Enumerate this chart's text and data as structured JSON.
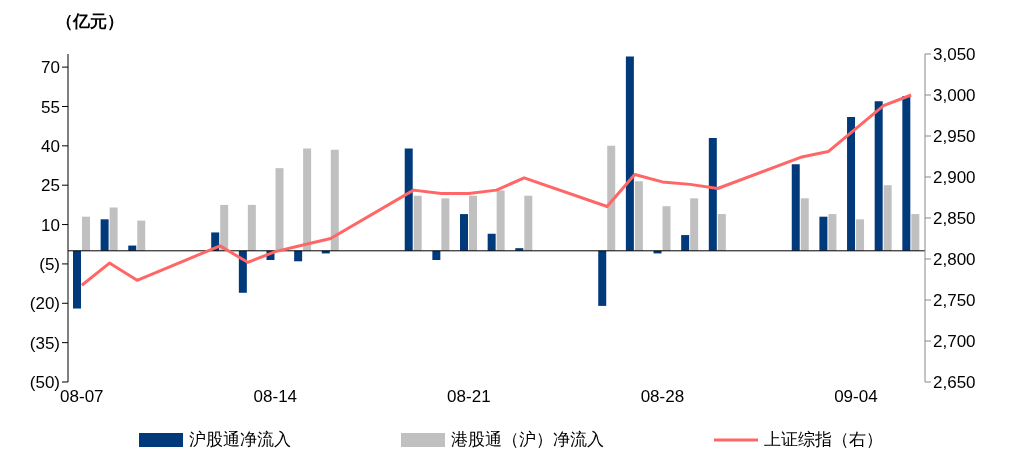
{
  "chart_data": {
    "type": "bar",
    "ylabel": "（亿元）",
    "categories": [
      "08-07",
      null,
      null,
      null,
      null,
      null,
      null,
      "08-14",
      null,
      null,
      null,
      null,
      null,
      null,
      "08-21",
      null,
      null,
      null,
      null,
      null,
      null,
      "08-28",
      null,
      null,
      null,
      null,
      null,
      null,
      "09-04",
      null,
      null
    ],
    "series": [
      {
        "name": "沪股通净流入",
        "color": "#003a7a",
        "values": [
          -22,
          12,
          2,
          null,
          null,
          7,
          -16,
          -3.5,
          -4,
          -1,
          null,
          null,
          39,
          -3.5,
          14,
          6.5,
          1,
          null,
          null,
          -21,
          74,
          -1,
          6,
          43,
          null,
          null,
          33,
          13,
          51,
          57,
          59
        ]
      },
      {
        "name": "港股通（沪）净流入",
        "color": "#c0c0c0",
        "values": [
          13,
          16.5,
          11.5,
          null,
          null,
          17.5,
          17.5,
          31.5,
          39,
          38.5,
          null,
          null,
          21,
          20,
          21,
          23,
          21,
          null,
          null,
          40,
          26.5,
          17,
          20,
          14,
          null,
          null,
          20,
          14,
          12,
          25,
          14
        ]
      },
      {
        "name": "上证综指（右）",
        "type": "line",
        "axis": "y2",
        "color": "#ff6666",
        "values": [
          2768,
          2795,
          2774,
          null,
          null,
          2816,
          2796,
          2809,
          2817,
          2825,
          null,
          null,
          2884,
          2880,
          2880,
          2884,
          2899,
          null,
          null,
          2864,
          2903,
          2894,
          2891,
          2886,
          null,
          null,
          2924,
          2931,
          2959,
          2987,
          3000
        ]
      }
    ],
    "ylim": [
      -50,
      75
    ],
    "yticks": [
      {
        "value": -50,
        "label": "(50)"
      },
      {
        "value": -35,
        "label": "(35)"
      },
      {
        "value": -20,
        "label": "(20)"
      },
      {
        "value": -5,
        "label": "(5)"
      },
      10,
      25,
      40,
      55,
      70
    ],
    "y2lim": [
      2650,
      3050
    ],
    "y2ticks": [
      {
        "value": 2650,
        "label": "2,650"
      },
      {
        "value": 2700,
        "label": "2,700"
      },
      {
        "value": 2750,
        "label": "2,750"
      },
      {
        "value": 2800,
        "label": "2,800"
      },
      {
        "value": 2850,
        "label": "2,850"
      },
      {
        "value": 2900,
        "label": "2,900"
      },
      {
        "value": 2950,
        "label": "2,950"
      },
      {
        "value": 3000,
        "label": "3,000"
      },
      {
        "value": 3050,
        "label": "3,050"
      }
    ],
    "grid": false,
    "legend": "bottom",
    "marker": "none",
    "line_style": "solid"
  }
}
